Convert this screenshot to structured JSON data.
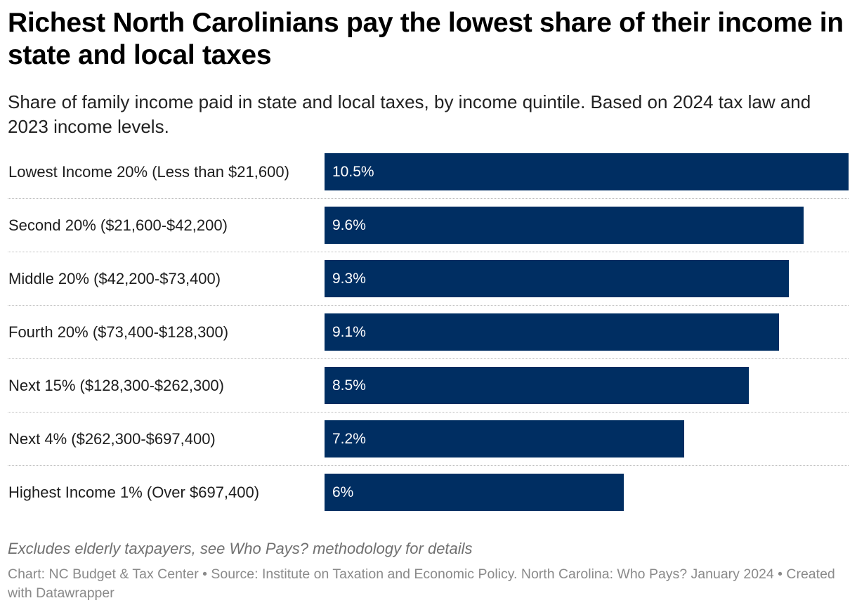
{
  "title": "Richest North Carolinians pay the lowest share of their income in state and local taxes",
  "subtitle": "Share of family income paid in state and local taxes, by income quintile. Based on 2024 tax law and 2023 income levels.",
  "note": "Excludes elderly taxpayers, see Who Pays? methodology for details",
  "footer": "Chart: NC Budget & Tax Center • Source: Institute on Taxation and Economic Policy. North Carolina: Who Pays? January 2024 • Created with Datawrapper",
  "colors": {
    "bar": "#002e62",
    "bar_text": "#ffffff"
  },
  "chart_data": {
    "type": "bar",
    "orientation": "horizontal",
    "title": "Richest North Carolinians pay the lowest share of their income in state and local taxes",
    "xlabel": "",
    "ylabel": "",
    "unit": "%",
    "xlim": [
      0,
      10.5
    ],
    "categories": [
      "Lowest Income 20% (Less than $21,600)",
      "Second 20% ($21,600-$42,200)",
      "Middle 20% ($42,200-$73,400)",
      "Fourth 20% ($73,400-$128,300)",
      "Next 15% ($128,300-$262,300)",
      "Next 4% ($262,300-$697,400)",
      "Highest Income 1% (Over $697,400)"
    ],
    "values": [
      10.5,
      9.6,
      9.3,
      9.1,
      8.5,
      7.2,
      6
    ],
    "value_labels": [
      "10.5%",
      "9.6%",
      "9.3%",
      "9.1%",
      "8.5%",
      "7.2%",
      "6%"
    ]
  }
}
